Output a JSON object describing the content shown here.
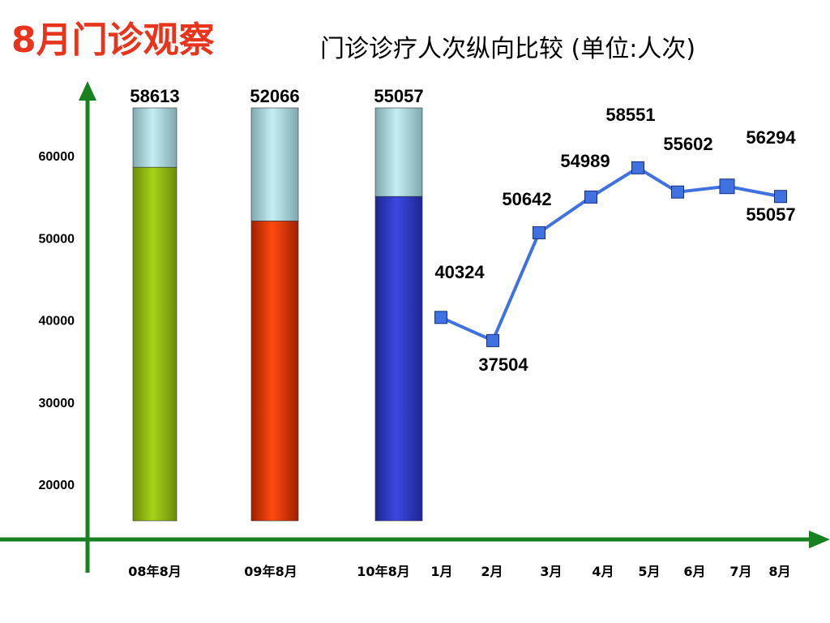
{
  "header": {
    "title": "8月门诊观察",
    "subtitle": "门诊诊疗人次纵向比较 (单位:人次)"
  },
  "chart_data": [
    {
      "type": "bar",
      "categories": [
        "08年8月",
        "09年8月",
        "10年8月"
      ],
      "values": [
        58613,
        52066,
        55057
      ],
      "colors": [
        "#8fbf10",
        "#ff3a0c",
        "#2f3ccf"
      ],
      "cap_color": "#a8d8de"
    },
    {
      "type": "line",
      "x": [
        "1月",
        "2月",
        "3月",
        "4月",
        "5月",
        "6月",
        "7月",
        "8月"
      ],
      "y": [
        40324,
        37504,
        50642,
        54989,
        58551,
        55602,
        56294,
        55057
      ],
      "color": "#3f72e0"
    }
  ],
  "axis": {
    "ticks": [
      "20000",
      "30000",
      "40000",
      "50000",
      "60000"
    ],
    "color": "#17801f"
  }
}
